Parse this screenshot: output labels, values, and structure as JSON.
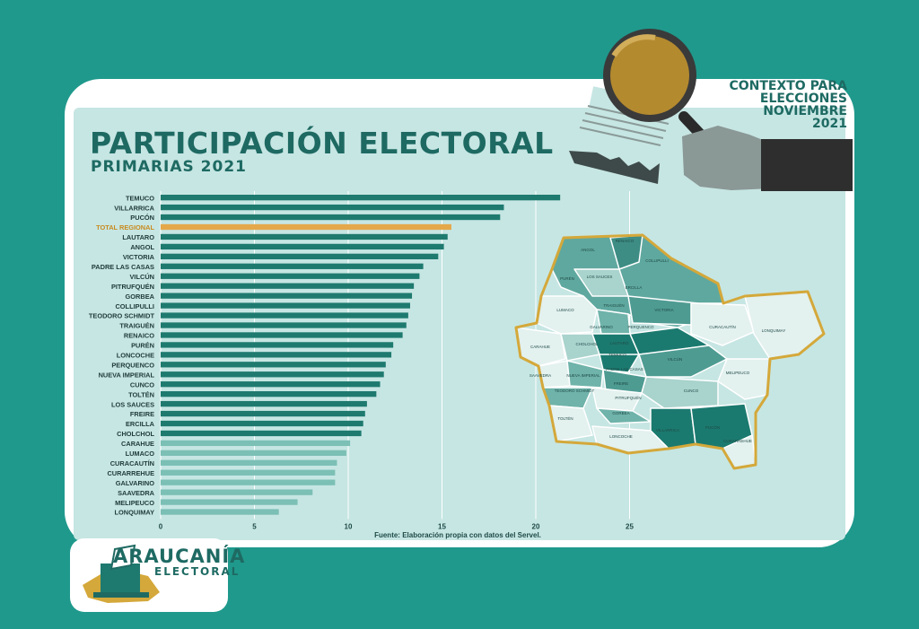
{
  "header": {
    "title": "PARTICIPACIÓN ELECTORAL",
    "subtitle": "PRIMARIAS 2021"
  },
  "badge": {
    "lines": [
      "CONTEXTO PARA",
      "ELECCIONES",
      "NOVIEMBRE",
      "2021"
    ]
  },
  "logo": {
    "line1": "ARAUCANÍA",
    "line2": "ELECTORAL"
  },
  "colors": {
    "background": "#1f998c",
    "panel": "#c6e6e3",
    "dark_bar": "#1e7a6f",
    "light_bar": "#7bbfb5",
    "highlight_bar": "#e4a84b",
    "title": "#1e6a63",
    "map_border": "#d4a83a"
  },
  "chart_data": {
    "type": "bar",
    "orientation": "horizontal",
    "title": "PARTICIPACIÓN ELECTORAL",
    "subtitle": "PRIMARIAS 2021",
    "categories": [
      "TEMUCO",
      "VILLARRICA",
      "PUCÓN",
      "TOTAL REGIONAL",
      "LAUTARO",
      "ANGOL",
      "VICTORIA",
      "PADRE LAS CASAS",
      "VILCÚN",
      "PITRUFQUÉN",
      "GORBEA",
      "COLLIPULLI",
      "TEODORO SCHMIDT",
      "TRAIGUÉN",
      "RENAICO",
      "PURÉN",
      "LONCOCHE",
      "PERQUENCO",
      "NUEVA IMPERIAL",
      "CUNCO",
      "TOLTÉN",
      "LOS SAUCES",
      "FREIRE",
      "ERCILLA",
      "CHOLCHOL",
      "CARAHUE",
      "LUMACO",
      "CURACAUTÍN",
      "CURARREHUE",
      "GALVARINO",
      "SAAVEDRA",
      "MELIPEUCO",
      "LONQUIMAY"
    ],
    "values": [
      21.3,
      18.3,
      18.1,
      15.5,
      15.3,
      15.1,
      14.8,
      14.0,
      13.8,
      13.5,
      13.4,
      13.3,
      13.2,
      13.1,
      12.9,
      12.4,
      12.3,
      12.0,
      11.9,
      11.7,
      11.5,
      11.0,
      10.9,
      10.8,
      10.7,
      10.1,
      9.9,
      9.4,
      9.3,
      9.3,
      8.1,
      7.3,
      6.3
    ],
    "highlight_category": "TOTAL REGIONAL",
    "xlim": [
      0,
      30
    ],
    "xticks": [
      0,
      5,
      10,
      15,
      20,
      25
    ],
    "grid": true,
    "source": "Fuente: Elaboración propia con datos del Servel."
  },
  "map": {
    "labels": [
      "ANGOL",
      "RENAICO",
      "PURÉN",
      "LOS SAUCES",
      "COLLIPULLI",
      "ERCILLA",
      "LUMACO",
      "TRAIGUÉN",
      "VICTORIA",
      "GALVARINO",
      "PERQUENCO",
      "CURACAUTÍN",
      "LONQUIMAY",
      "CARAHUE",
      "CHOLCHOL",
      "LAUTARO",
      "TEMUCO",
      "VILCÚN",
      "SAAVEDRA",
      "NUEVA IMPERIAL",
      "PADRE LAS CASAS",
      "MELIPEUCO",
      "TEODORO SCHMIDT",
      "FREIRE",
      "CUNCO",
      "PITRUFQUÉN",
      "TOLTÉN",
      "GORBEA",
      "VILLARRICA",
      "PUCÓN",
      "LONCOCHE",
      "CURARREHUE"
    ]
  }
}
